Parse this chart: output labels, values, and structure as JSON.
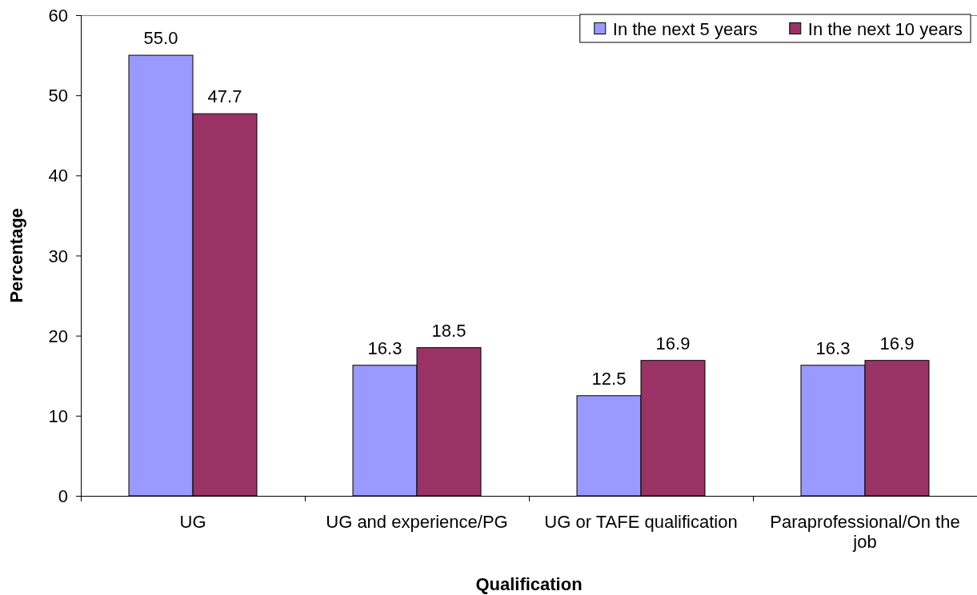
{
  "chart_data": {
    "type": "bar",
    "xlabel": "Qualification",
    "ylabel": "Percentage",
    "categories": [
      "UG",
      "UG and experience/PG",
      "UG or TAFE qualification",
      "Paraprofessional/On the job"
    ],
    "series": [
      {
        "name": "In the next 5 years",
        "color": "#9999ff",
        "values": [
          55.0,
          16.3,
          12.5,
          16.3
        ],
        "value_labels": [
          "55.0",
          "16.3",
          "12.5",
          "16.3"
        ]
      },
      {
        "name": "In the next 10 years",
        "color": "#993366",
        "values": [
          47.7,
          18.5,
          16.9,
          16.9
        ],
        "value_labels": [
          "47.7",
          "18.5",
          "16.9",
          "16.9"
        ]
      }
    ],
    "ylim": [
      0,
      60
    ],
    "yticks": [
      0,
      10,
      20,
      30,
      40,
      50,
      60
    ],
    "legend": "top right"
  }
}
